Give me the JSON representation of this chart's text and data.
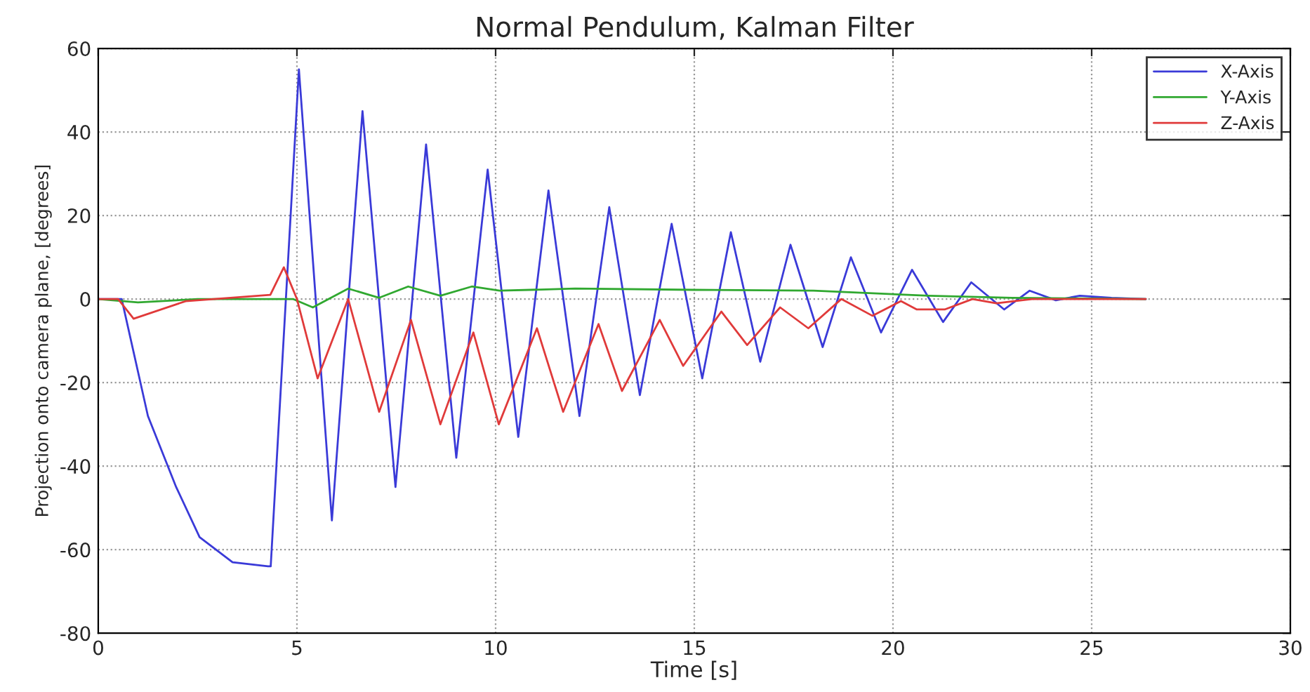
{
  "chart_data": {
    "type": "line",
    "title": "Normal Pendulum, Kalman Filter",
    "xlabel": "Time [s]",
    "ylabel": "Projection onto camera plane, [degrees]",
    "xlim": [
      0,
      30
    ],
    "xticks": [
      0,
      5,
      10,
      15,
      20,
      25,
      30
    ],
    "ylim": [
      -80,
      60
    ],
    "yticks": [
      -80,
      -60,
      -40,
      -20,
      0,
      20,
      40,
      60
    ],
    "grid": true,
    "legend": "top right",
    "marker": "none",
    "line_style": "solid",
    "series": [
      {
        "name": "X-Axis",
        "color": "#3a3ad8",
        "x": [
          0,
          0.59,
          1.25,
          1.96,
          2.55,
          3.38,
          4.27,
          4.34,
          5.05,
          5.88,
          6.65,
          7.48,
          8.25,
          9.01,
          9.8,
          10.57,
          11.33,
          12.11,
          12.86,
          13.63,
          14.43,
          15.2,
          15.92,
          16.66,
          17.42,
          18.23,
          18.94,
          19.7,
          20.48,
          21.26,
          21.97,
          22.8,
          23.44,
          24.1,
          24.7,
          25.5,
          26.36
        ],
        "values": [
          0,
          0,
          -28,
          -45,
          -57,
          -63,
          -64,
          -64,
          55,
          -53,
          45,
          -45,
          37,
          -38,
          31,
          -33,
          26,
          -28,
          22,
          -23,
          18,
          -19,
          16,
          -15,
          13,
          -11.5,
          10,
          -8,
          7,
          -5.5,
          4,
          -2.5,
          2,
          -0.3,
          0.8,
          0.3,
          0
        ]
      },
      {
        "name": "Y-Axis",
        "color": "#30a830",
        "x": [
          0,
          1.0,
          2.5,
          4.3,
          4.9,
          5.4,
          6.29,
          7.07,
          7.8,
          8.61,
          9.4,
          10.1,
          12,
          15,
          18,
          20.9,
          23,
          26.36
        ],
        "values": [
          0,
          -0.8,
          0,
          0,
          0,
          -2,
          2.5,
          0.3,
          3,
          0.8,
          3,
          2,
          2.5,
          2.2,
          2,
          0.8,
          0.3,
          0
        ]
      },
      {
        "name": "Z-Axis",
        "color": "#e03a3a",
        "x": [
          0,
          0.5,
          0.89,
          2.2,
          4.33,
          4.67,
          5.0,
          5.52,
          6.29,
          7.07,
          7.87,
          8.61,
          9.44,
          10.08,
          11.04,
          11.7,
          12.59,
          13.18,
          14.13,
          14.72,
          15.68,
          16.33,
          17.16,
          17.87,
          18.7,
          19.48,
          20.2,
          20.6,
          21.3,
          22.0,
          22.6,
          23.5,
          26.36
        ],
        "values": [
          0,
          0,
          -4.7,
          -0.5,
          1,
          7.6,
          0,
          -19,
          0,
          -27,
          -5,
          -30,
          -8,
          -30,
          -7,
          -27,
          -6,
          -22,
          -5,
          -16,
          -3,
          -11,
          -2,
          -7,
          0,
          -4,
          -0.5,
          -2.5,
          -2.5,
          0,
          -1,
          0,
          0
        ]
      }
    ]
  }
}
